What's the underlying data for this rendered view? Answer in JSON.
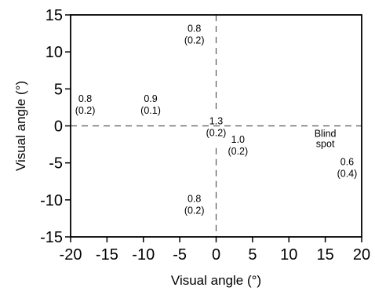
{
  "chart_data": {
    "type": "scatter",
    "title": "",
    "xlabel": "Visual angle (°)",
    "ylabel": "Visual angle (°)",
    "xlim": [
      -20,
      20
    ],
    "ylim": [
      -15,
      15
    ],
    "xticks": [
      -20,
      -15,
      -10,
      -5,
      0,
      5,
      10,
      15,
      20
    ],
    "yticks": [
      -15,
      -10,
      -5,
      0,
      5,
      10,
      15
    ],
    "xtick_labels": [
      "-20",
      "-15",
      "-10",
      "-5",
      "0",
      "5",
      "10",
      "15",
      "20"
    ],
    "ytick_labels": [
      "-15",
      "-10",
      "-5",
      "0",
      "5",
      "10",
      "15"
    ],
    "grid": false,
    "reference_lines": [
      {
        "orientation": "horizontal",
        "at": 0,
        "style": "dashed"
      },
      {
        "orientation": "vertical",
        "at": 0,
        "style": "dashed"
      }
    ],
    "annotations": [
      {
        "x": -18,
        "y": 3,
        "value": "0.8",
        "sd": "(0.2)"
      },
      {
        "x": -9,
        "y": 3,
        "value": "0.9",
        "sd": "(0.1)"
      },
      {
        "x": -3,
        "y": 12.5,
        "value": "0.8",
        "sd": "(0.2)"
      },
      {
        "x": 0,
        "y": 0,
        "value": "1.3",
        "sd": "(0.2)"
      },
      {
        "x": 3,
        "y": -2.5,
        "value": "1.0",
        "sd": "(0.2)"
      },
      {
        "x": -3,
        "y": -10.5,
        "value": "0.8",
        "sd": "(0.2)"
      },
      {
        "x": 18,
        "y": -5.5,
        "value": "0.6",
        "sd": "(0.4)"
      }
    ],
    "text_labels": [
      {
        "x": 15,
        "y": -1.5,
        "lines": [
          "Blind",
          "spot"
        ]
      }
    ]
  }
}
